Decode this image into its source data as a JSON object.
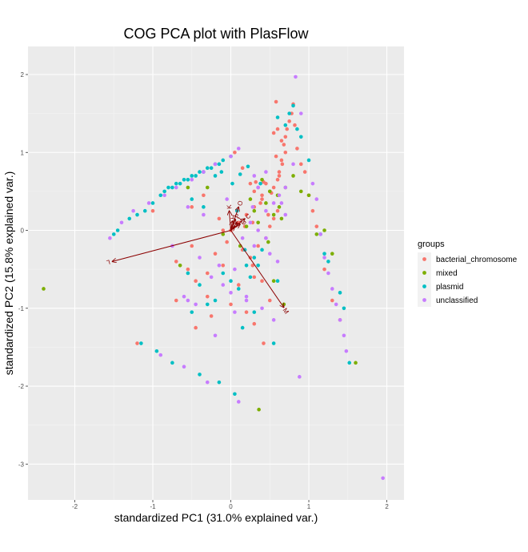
{
  "chart_data": {
    "type": "scatter",
    "title": "COG PCA plot with PlasFlow",
    "xlabel": "standardized PC1 (31.0% explained var.)",
    "ylabel": "standardized PC2 (15.8% explained var.)",
    "xlim": [
      -2.6,
      2.22
    ],
    "ylim": [
      -3.46,
      2.36
    ],
    "x_ticks": [
      -2,
      -1,
      0,
      1,
      2
    ],
    "x_tick_labels": [
      "-2",
      "-1",
      "0",
      "1",
      "2"
    ],
    "y_ticks": [
      -3,
      -2,
      -1,
      0,
      1,
      2
    ],
    "y_tick_labels": [
      "-3",
      "-2",
      "-1",
      "0",
      "1",
      "2"
    ],
    "grid": true,
    "legend": {
      "title": "groups",
      "position": "right",
      "entries": [
        {
          "name": "bacterial_chromosome",
          "color": "#F8766D"
        },
        {
          "name": "mixed",
          "color": "#7CAE00"
        },
        {
          "name": "plasmid",
          "color": "#00BFC4"
        },
        {
          "name": "unclassified",
          "color": "#C77CFF"
        }
      ]
    },
    "arrows": [
      {
        "label": "L",
        "x": -1.52,
        "y": -0.4
      },
      {
        "label": "M",
        "x": 0.68,
        "y": -0.99
      },
      {
        "label": "O",
        "x": 0.1,
        "y": 0.3
      },
      {
        "label": "K",
        "x": -0.02,
        "y": 0.25
      },
      {
        "label": "C",
        "x": 0.18,
        "y": 0.15
      },
      {
        "label": "J",
        "x": 0.08,
        "y": 0.1
      },
      {
        "label": "E",
        "x": 0.05,
        "y": 0.05
      },
      {
        "label": "G",
        "x": 0.12,
        "y": 0.08
      },
      {
        "label": "H",
        "x": 0.02,
        "y": 0.12
      },
      {
        "label": "P",
        "x": 0.06,
        "y": 0.14
      }
    ],
    "arrow_color": "#8b0000",
    "series": [
      {
        "name": "bacterial_chromosome",
        "color": "#F8766D",
        "x": [
          -0.7,
          -0.55,
          -0.45,
          -0.3,
          -0.2,
          -0.1,
          0.05,
          0.15,
          0.25,
          0.3,
          0.35,
          0.4,
          0.45,
          0.5,
          0.55,
          0.6,
          0.62,
          0.65,
          0.68,
          0.7,
          0.72,
          0.75,
          0.78,
          0.8,
          0.82,
          0.85,
          0.9,
          0.95,
          1.0,
          1.05,
          1.1,
          1.2,
          1.3,
          1.4,
          0.58,
          0.4,
          0.3,
          0.2,
          0.1,
          0.0,
          -0.05,
          0.15,
          0.25,
          0.35,
          0.45,
          0.5,
          0.55,
          0.6,
          0.32,
          0.42,
          0.52,
          0.38,
          0.48,
          0.28,
          0.18,
          -0.15,
          -0.35,
          -0.5,
          -1.0,
          -1.2,
          0.55,
          0.6,
          0.65,
          0.7,
          0.58,
          0.62,
          0.66,
          0.4,
          0.3,
          -0.7,
          -0.5,
          -0.3,
          -0.1,
          0.1,
          0.28,
          0.5,
          -0.45,
          -0.25,
          0.0,
          0.2,
          0.3,
          0.42
        ],
        "y": [
          -0.9,
          -0.5,
          -0.65,
          -0.85,
          -0.3,
          0.0,
          1.0,
          0.8,
          0.6,
          0.5,
          0.55,
          0.45,
          0.6,
          0.5,
          0.55,
          0.65,
          0.75,
          0.9,
          1.1,
          1.2,
          1.3,
          1.4,
          1.5,
          1.62,
          1.35,
          1.05,
          0.85,
          0.75,
          0.45,
          0.25,
          0.05,
          -0.5,
          -0.9,
          -1.15,
          1.65,
          0.4,
          0.3,
          0.2,
          0.1,
          0.0,
          -0.15,
          -0.25,
          -0.35,
          -0.2,
          -0.1,
          0.05,
          0.15,
          0.25,
          0.62,
          0.62,
          0.48,
          0.35,
          0.2,
          0.1,
          0.05,
          0.15,
          0.45,
          0.3,
          0.25,
          -1.45,
          1.25,
          1.3,
          1.15,
          1.0,
          0.95,
          0.7,
          0.85,
          -0.65,
          -0.6,
          -0.4,
          -0.2,
          -0.55,
          -0.45,
          -0.7,
          -0.45,
          -0.9,
          -1.25,
          -1.1,
          -0.95,
          -1.05,
          -1.2,
          -1.45
        ]
      },
      {
        "name": "mixed",
        "color": "#7CAE00",
        "x": [
          -2.4,
          0.36,
          0.6,
          0.5,
          0.45,
          0.55,
          0.65,
          0.3,
          0.2,
          -0.1,
          -0.65,
          0.9,
          1.0,
          1.1,
          1.3,
          1.6,
          0.7,
          0.35,
          0.62,
          0.12,
          -0.55,
          -0.3,
          0.55,
          0.68,
          0.4,
          0.8,
          1.2,
          0.25,
          0.48
        ],
        "y": [
          -0.75,
          -2.3,
          0.45,
          0.5,
          0.35,
          0.2,
          0.15,
          0.25,
          0.05,
          -0.05,
          -0.45,
          0.5,
          0.45,
          -0.05,
          -0.3,
          -1.7,
          0.55,
          0.1,
          0.3,
          -0.2,
          0.55,
          0.55,
          -0.65,
          -0.95,
          0.65,
          0.7,
          0.0,
          0.4,
          -0.15
        ]
      },
      {
        "name": "plasmid",
        "color": "#00BFC4",
        "x": [
          -1.5,
          -1.3,
          -1.1,
          -0.9,
          -0.8,
          -0.7,
          -0.6,
          -0.5,
          -0.4,
          -0.3,
          -0.2,
          -0.1,
          0.0,
          -1.45,
          -1.2,
          -1.0,
          -0.85,
          -0.75,
          -0.65,
          -0.55,
          -0.45,
          -0.35,
          -0.25,
          -0.15,
          -1.15,
          -0.95,
          -0.75,
          -0.4,
          -0.15,
          0.05,
          0.2,
          0.3,
          0.4,
          0.6,
          0.8,
          0.85,
          0.9,
          1.0,
          1.15,
          1.2,
          1.25,
          1.4,
          1.45,
          1.52,
          0.7,
          0.75,
          -0.5,
          -0.3,
          -0.1,
          0.1,
          0.25,
          0.35,
          0.55,
          -0.55,
          -0.4,
          -0.2,
          0.0,
          0.15,
          0.3,
          0.6,
          -0.2,
          -0.5,
          -0.35,
          0.08,
          0.18,
          0.38,
          0.12,
          0.02,
          -0.12,
          0.22
        ],
        "y": [
          -0.05,
          0.15,
          0.25,
          0.45,
          0.55,
          0.6,
          0.65,
          0.7,
          0.75,
          0.8,
          0.85,
          0.9,
          0.95,
          0.0,
          0.2,
          0.35,
          0.5,
          0.55,
          0.6,
          0.65,
          0.7,
          0.75,
          0.8,
          0.85,
          -1.45,
          -1.55,
          -1.7,
          -1.85,
          -1.95,
          -2.1,
          -0.45,
          -0.35,
          -0.25,
          1.45,
          1.6,
          1.3,
          1.2,
          0.9,
          -0.05,
          -0.3,
          -0.4,
          -0.8,
          -1.0,
          -1.7,
          1.35,
          1.5,
          -1.05,
          -0.95,
          -0.55,
          -0.75,
          -0.6,
          -0.45,
          -1.45,
          -0.55,
          -0.7,
          -0.9,
          -0.65,
          -1.25,
          -1.05,
          -0.65,
          0.7,
          0.4,
          0.3,
          0.25,
          -0.25,
          0.6,
          0.72,
          0.6,
          0.75,
          0.82
        ]
      },
      {
        "name": "unclassified",
        "color": "#C77CFF",
        "x": [
          1.95,
          0.83,
          0.9,
          0.88,
          1.05,
          1.1,
          1.15,
          1.2,
          1.25,
          1.3,
          1.35,
          1.4,
          1.45,
          1.48,
          -1.55,
          -1.4,
          -1.25,
          -1.05,
          -0.85,
          -0.7,
          -0.5,
          -0.35,
          -0.2,
          0.0,
          0.1,
          -0.9,
          -0.6,
          -0.3,
          0.1,
          0.3,
          0.5,
          0.6,
          0.8,
          0.25,
          0.35,
          0.45,
          -0.6,
          -0.45,
          -0.25,
          0.05,
          0.2,
          -0.05,
          0.15,
          -0.4,
          -0.15,
          0.0,
          0.2,
          0.4,
          0.55,
          0.65,
          0.7,
          -0.75,
          -0.55,
          -0.35,
          0.3,
          0.45,
          0.35,
          0.45,
          0.55,
          0.62,
          0.7,
          -0.2,
          0.05,
          -0.55,
          -0.1,
          0.28
        ],
        "y": [
          -3.18,
          1.97,
          1.5,
          -1.88,
          0.6,
          0.4,
          -0.05,
          -0.35,
          -0.55,
          -0.75,
          -0.95,
          -1.15,
          -1.35,
          -1.55,
          -0.1,
          0.1,
          0.25,
          0.35,
          0.45,
          0.55,
          0.65,
          0.75,
          0.85,
          0.95,
          1.05,
          -1.6,
          -1.75,
          -1.95,
          -2.2,
          -0.2,
          -0.3,
          -0.4,
          0.85,
          0.1,
          0.0,
          -0.1,
          -0.85,
          -0.95,
          -0.6,
          -0.5,
          -0.85,
          0.4,
          -0.1,
          -0.35,
          -0.45,
          -0.8,
          -0.9,
          -1.0,
          -1.15,
          0.35,
          0.55,
          -0.2,
          0.3,
          0.2,
          0.7,
          0.75,
          0.55,
          0.25,
          0.35,
          0.45,
          0.2,
          -1.35,
          -1.05,
          -0.9,
          -0.7,
          0.3
        ]
      }
    ]
  }
}
